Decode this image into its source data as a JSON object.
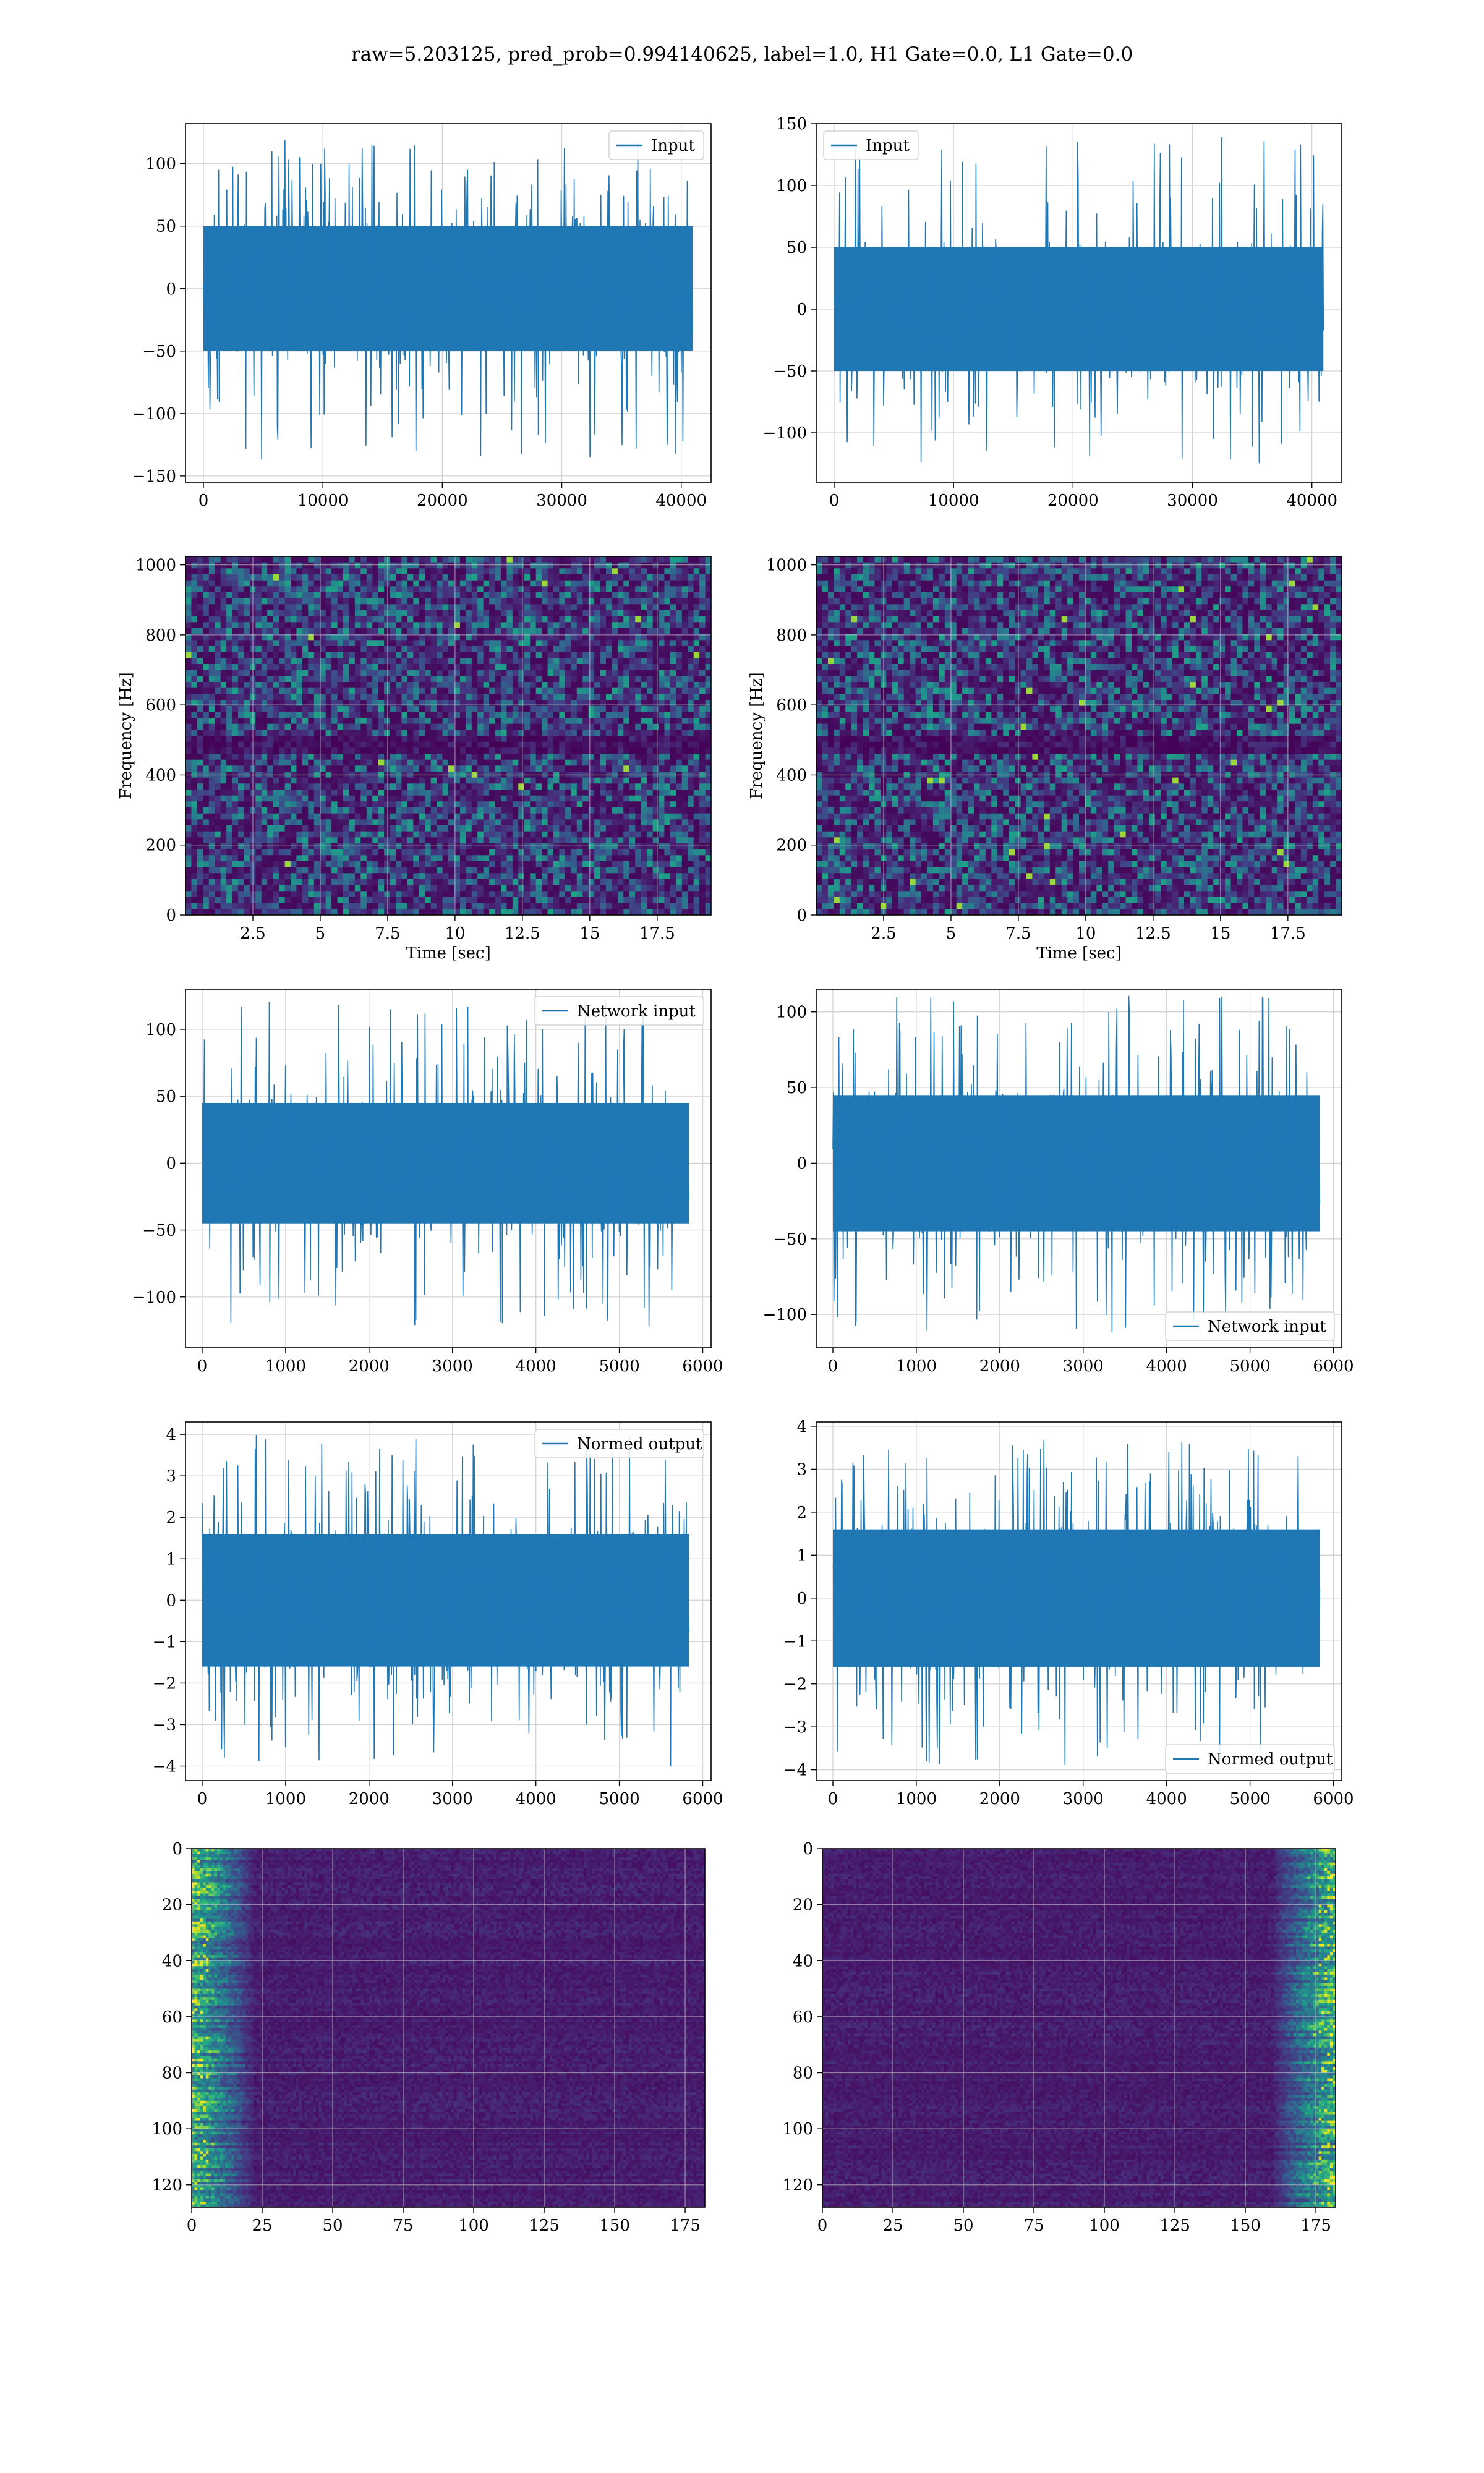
{
  "figure": {
    "suptitle": "raw=5.203125, pred_prob=0.994140625, label=1.0, H1 Gate=0.0, L1 Gate=0.0"
  },
  "colors": {
    "series": "#1f77b4",
    "grid": "#d4d4d4",
    "viridis_low": "#440154",
    "viridis_mid": "#21918c",
    "viridis_high": "#fde725"
  },
  "chart_data": [
    {
      "id": "input-h1",
      "type": "line",
      "xlim": [
        -1500,
        42500
      ],
      "ylim": [
        -155,
        132
      ],
      "xticks": [
        0,
        10000,
        20000,
        30000,
        40000
      ],
      "yticks": [
        -150,
        -100,
        -50,
        0,
        50,
        100
      ],
      "xlabel": "",
      "ylabel": "",
      "grid": true,
      "legend": {
        "label": "Input",
        "position": "top-right"
      },
      "series": [
        {
          "name": "Input",
          "n_samples": 40960,
          "x_range": [
            0,
            40960
          ],
          "envelope": [
            -138,
            120
          ],
          "typical_band": [
            -50,
            50
          ]
        }
      ]
    },
    {
      "id": "input-l1",
      "type": "line",
      "xlim": [
        -1500,
        42500
      ],
      "ylim": [
        -140,
        150
      ],
      "xticks": [
        0,
        10000,
        20000,
        30000,
        40000
      ],
      "yticks": [
        -100,
        -50,
        0,
        50,
        100,
        150
      ],
      "xlabel": "",
      "ylabel": "",
      "grid": true,
      "legend": {
        "label": "Input",
        "position": "top-left"
      },
      "series": [
        {
          "name": "Input",
          "n_samples": 40960,
          "x_range": [
            0,
            40960
          ],
          "envelope": [
            -125,
            140
          ],
          "typical_band": [
            -50,
            50
          ]
        }
      ]
    },
    {
      "id": "spectrogram-h1",
      "type": "heatmap",
      "xlim": [
        0,
        19.5
      ],
      "ylim": [
        0,
        1024
      ],
      "xticks": [
        2.5,
        5.0,
        7.5,
        10.0,
        12.5,
        15.0,
        17.5
      ],
      "yticks": [
        0,
        200,
        400,
        600,
        800,
        1000
      ],
      "xlabel": "Time [sec]",
      "ylabel": "Frequency [Hz]",
      "grid": true,
      "colormap": "viridis",
      "dark_band_hz": [
        480,
        500
      ]
    },
    {
      "id": "spectrogram-l1",
      "type": "heatmap",
      "xlim": [
        0,
        19.5
      ],
      "ylim": [
        0,
        1024
      ],
      "xticks": [
        2.5,
        5.0,
        7.5,
        10.0,
        12.5,
        15.0,
        17.5
      ],
      "yticks": [
        0,
        200,
        400,
        600,
        800,
        1000
      ],
      "xlabel": "Time [sec]",
      "ylabel": "Frequency [Hz]",
      "grid": true,
      "colormap": "viridis",
      "dark_band_hz": [
        480,
        500
      ]
    },
    {
      "id": "network-input-h1",
      "type": "line",
      "xlim": [
        -200,
        6100
      ],
      "ylim": [
        -138,
        130
      ],
      "xticks": [
        0,
        1000,
        2000,
        3000,
        4000,
        5000,
        6000
      ],
      "yticks": [
        -100,
        -50,
        0,
        50,
        100
      ],
      "xlabel": "",
      "ylabel": "",
      "grid": true,
      "legend": {
        "label": "Network input",
        "position": "top-right"
      },
      "series": [
        {
          "name": "Network input",
          "n_samples": 5836,
          "x_range": [
            0,
            5836
          ],
          "envelope": [
            -122,
            122
          ],
          "typical_band": [
            -45,
            45
          ]
        }
      ]
    },
    {
      "id": "network-input-l1",
      "type": "line",
      "xlim": [
        -200,
        6100
      ],
      "ylim": [
        -122,
        115
      ],
      "xticks": [
        0,
        1000,
        2000,
        3000,
        4000,
        5000,
        6000
      ],
      "yticks": [
        -100,
        -50,
        0,
        50,
        100
      ],
      "xlabel": "",
      "ylabel": "",
      "grid": true,
      "legend": {
        "label": "Network input",
        "position": "bottom-right"
      },
      "series": [
        {
          "name": "Network input",
          "n_samples": 5836,
          "x_range": [
            0,
            5836
          ],
          "envelope": [
            -112,
            112
          ],
          "typical_band": [
            -45,
            45
          ]
        }
      ]
    },
    {
      "id": "normed-output-h1",
      "type": "line",
      "xlim": [
        -200,
        6100
      ],
      "ylim": [
        -4.35,
        4.3
      ],
      "xticks": [
        0,
        1000,
        2000,
        3000,
        4000,
        5000,
        6000
      ],
      "yticks": [
        -4,
        -3,
        -2,
        -1,
        0,
        1,
        2,
        3,
        4
      ],
      "xlabel": "",
      "ylabel": "",
      "grid": true,
      "legend": {
        "label": "Normed output",
        "position": "top-right"
      },
      "series": [
        {
          "name": "Normed output",
          "n_samples": 5836,
          "x_range": [
            0,
            5836
          ],
          "envelope": [
            -4.0,
            4.0
          ],
          "typical_band": [
            -1.6,
            1.6
          ]
        }
      ]
    },
    {
      "id": "normed-output-l1",
      "type": "line",
      "xlim": [
        -200,
        6100
      ],
      "ylim": [
        -4.25,
        4.1
      ],
      "xticks": [
        0,
        1000,
        2000,
        3000,
        4000,
        5000,
        6000
      ],
      "yticks": [
        -4,
        -3,
        -2,
        -1,
        0,
        1,
        2,
        3,
        4
      ],
      "xlabel": "",
      "ylabel": "",
      "grid": true,
      "legend": {
        "label": "Normed output",
        "position": "bottom-right"
      },
      "series": [
        {
          "name": "Normed output",
          "n_samples": 5836,
          "x_range": [
            0,
            5836
          ],
          "envelope": [
            -3.9,
            3.7
          ],
          "typical_band": [
            -1.6,
            1.6
          ]
        }
      ]
    },
    {
      "id": "feature-map-h1",
      "type": "heatmap",
      "xlim": [
        0,
        182
      ],
      "ylim": [
        128,
        0
      ],
      "xticks": [
        0,
        25,
        50,
        75,
        100,
        125,
        150,
        175
      ],
      "yticks": [
        0,
        20,
        40,
        60,
        80,
        100,
        120
      ],
      "xlabel": "",
      "ylabel": "",
      "grid": true,
      "colormap": "viridis",
      "bright_region": "left"
    },
    {
      "id": "feature-map-l1",
      "type": "heatmap",
      "xlim": [
        0,
        182
      ],
      "ylim": [
        128,
        0
      ],
      "xticks": [
        0,
        25,
        50,
        75,
        100,
        125,
        150,
        175
      ],
      "yticks": [
        0,
        20,
        40,
        60,
        80,
        100,
        120
      ],
      "xlabel": "",
      "ylabel": "",
      "grid": true,
      "colormap": "viridis",
      "bright_region": "right"
    }
  ]
}
